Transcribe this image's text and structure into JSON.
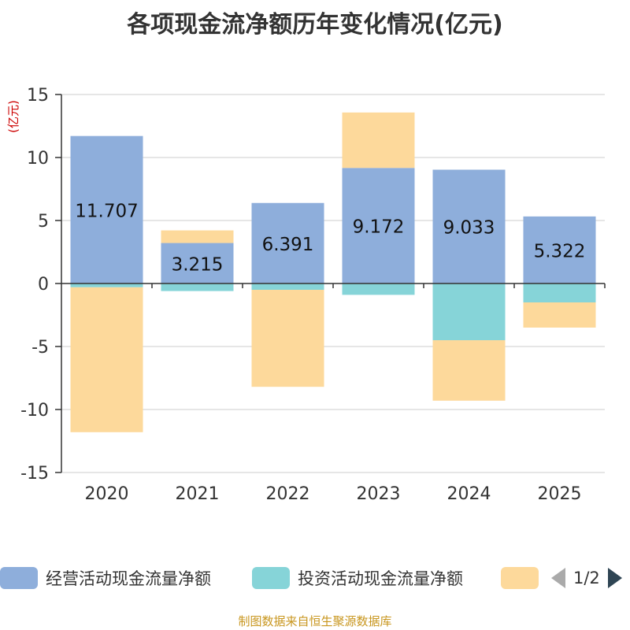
{
  "title": "各项现金流净额历年变化情况(亿元)",
  "source": "制图数据来自恒生聚源数据库",
  "pager": {
    "text": "1/2"
  },
  "legend": [
    {
      "label": "经营活动现金流量净额",
      "color": "#8eaedb"
    },
    {
      "label": "投资活动现金流量净额",
      "color": "#86d4d8"
    },
    {
      "label": "",
      "color": "#fdd99b"
    }
  ],
  "chart_data": {
    "type": "bar",
    "stacked": true,
    "title": "各项现金流净额历年变化情况(亿元)",
    "ylabel": "(亿元)",
    "xlabel": "",
    "ylim": [
      -15,
      15
    ],
    "yticks": [
      15,
      10,
      5,
      0,
      -5,
      -10,
      -15
    ],
    "categories": [
      "2020",
      "2021",
      "2022",
      "2023",
      "2024",
      "2025"
    ],
    "series": [
      {
        "name": "经营活动现金流量净额",
        "color": "#8eaedb",
        "values": [
          11.707,
          3.215,
          6.391,
          9.172,
          9.033,
          5.322
        ]
      },
      {
        "name": "投资活动现金流量净额",
        "color": "#86d4d8",
        "values": [
          -0.3,
          -0.6,
          -0.5,
          -0.9,
          -4.5,
          -1.5
        ]
      },
      {
        "name": "",
        "color": "#fdd99b",
        "values": [
          -11.5,
          1.0,
          -7.7,
          4.4,
          -4.8,
          -2.0
        ]
      }
    ],
    "data_labels": [
      "11.707",
      "3.215",
      "6.391",
      "9.172",
      "9.033",
      "5.322"
    ]
  }
}
